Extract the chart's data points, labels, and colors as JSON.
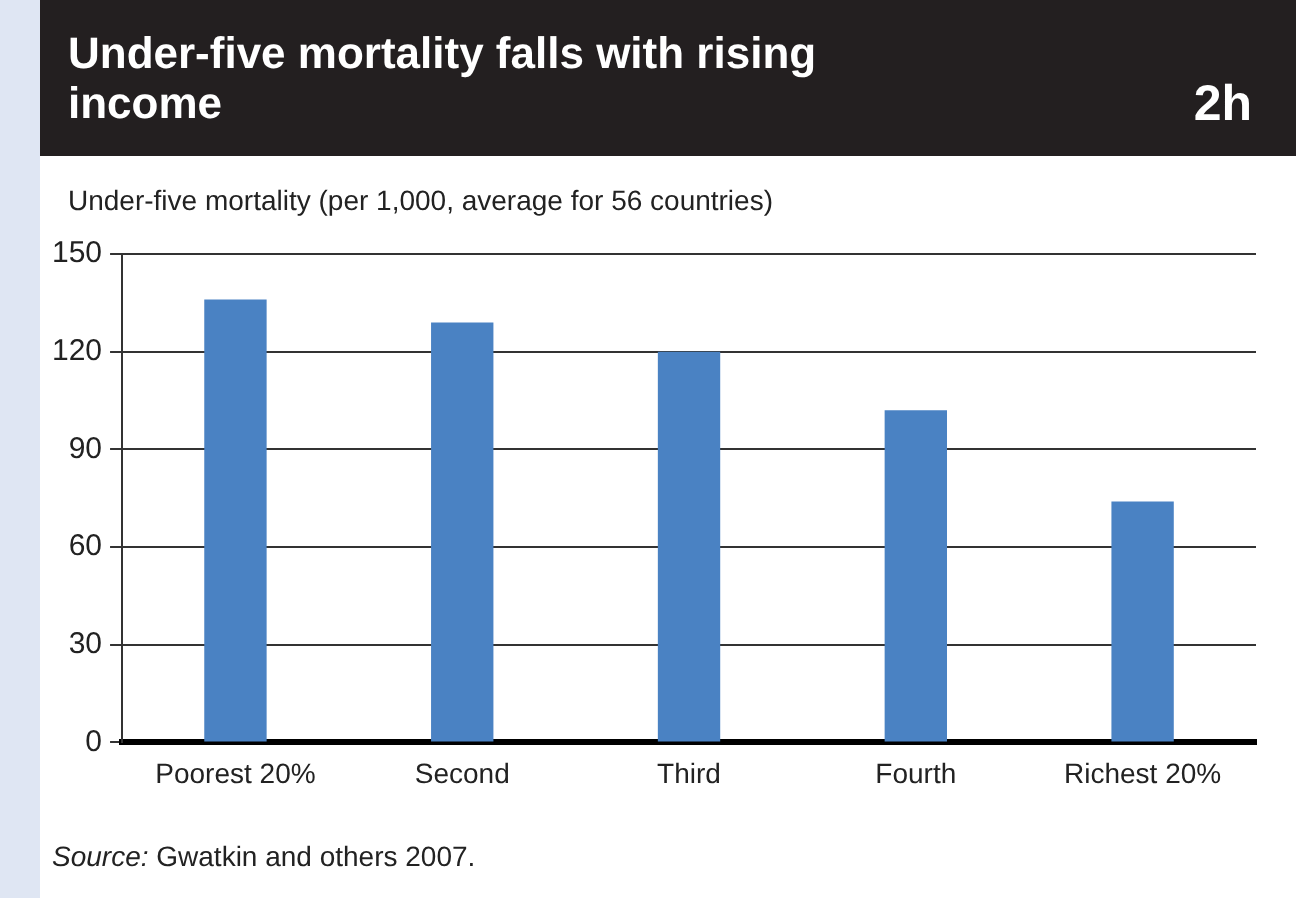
{
  "chart_data": {
    "type": "bar",
    "title": "Under-five mortality falls with rising income",
    "ylabel": "Under-five mortality (per 1,000, average for 56 countries)",
    "categories": [
      "Poorest 20%",
      "Second",
      "Third",
      "Fourth",
      "Richest 20%"
    ],
    "values": [
      136,
      129,
      120,
      102,
      74
    ],
    "color": "#4a82c3",
    "ylim": [
      0,
      150
    ],
    "yticks": [
      0,
      30,
      60,
      90,
      120,
      150
    ],
    "grid": "y",
    "legend": false,
    "annotations": [
      "2h",
      "Source: Gwatkin and others 2007."
    ]
  }
}
